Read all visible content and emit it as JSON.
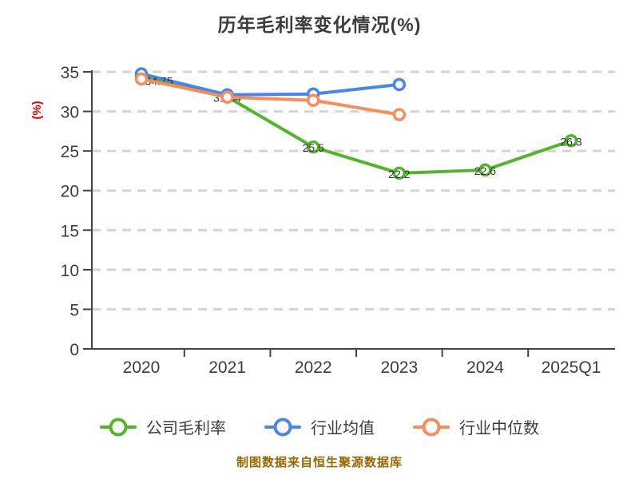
{
  "title": "历年毛利率变化情况(%)",
  "y_axis_unit": "(%)",
  "footer": "制图数据来自恒生聚源数据库",
  "colors": {
    "title_text": "#3c3c3c",
    "axis_text": "#3c3c3c",
    "axis_line": "#444444",
    "grid_line": "#d3d3d3",
    "y_unit_red": "#e60000",
    "footer_gold": "#996600",
    "point_label": "#333333",
    "background": "#ffffff"
  },
  "chart_data": {
    "type": "line",
    "categories": [
      "2020",
      "2021",
      "2022",
      "2023",
      "2024",
      "2025Q1"
    ],
    "y_ticks": [
      0,
      5,
      10,
      15,
      20,
      25,
      30,
      35
    ],
    "ylim": [
      0,
      35
    ],
    "grid": "horizontal-dashed",
    "legend_position": "bottom",
    "marker_style": "open-circle-white-fill",
    "series": [
      {
        "name": "公司毛利率",
        "color": "#52b52e",
        "values": [
          34.4,
          31.84,
          25.5,
          22.2,
          22.6,
          26.3
        ],
        "labels": [
          null,
          "31.84",
          "25.5",
          "22.2",
          "22.6",
          "26.3"
        ]
      },
      {
        "name": "行业均值",
        "color": "#4a86e8",
        "values": [
          34.75,
          32.1,
          32.2,
          33.4
        ],
        "labels": [
          "34.75",
          null,
          null,
          null
        ]
      },
      {
        "name": "行业中位数",
        "color": "#f68d5c",
        "values": [
          34.1,
          31.8,
          31.4,
          29.6
        ],
        "labels": [
          null,
          null,
          null,
          null
        ]
      }
    ]
  }
}
